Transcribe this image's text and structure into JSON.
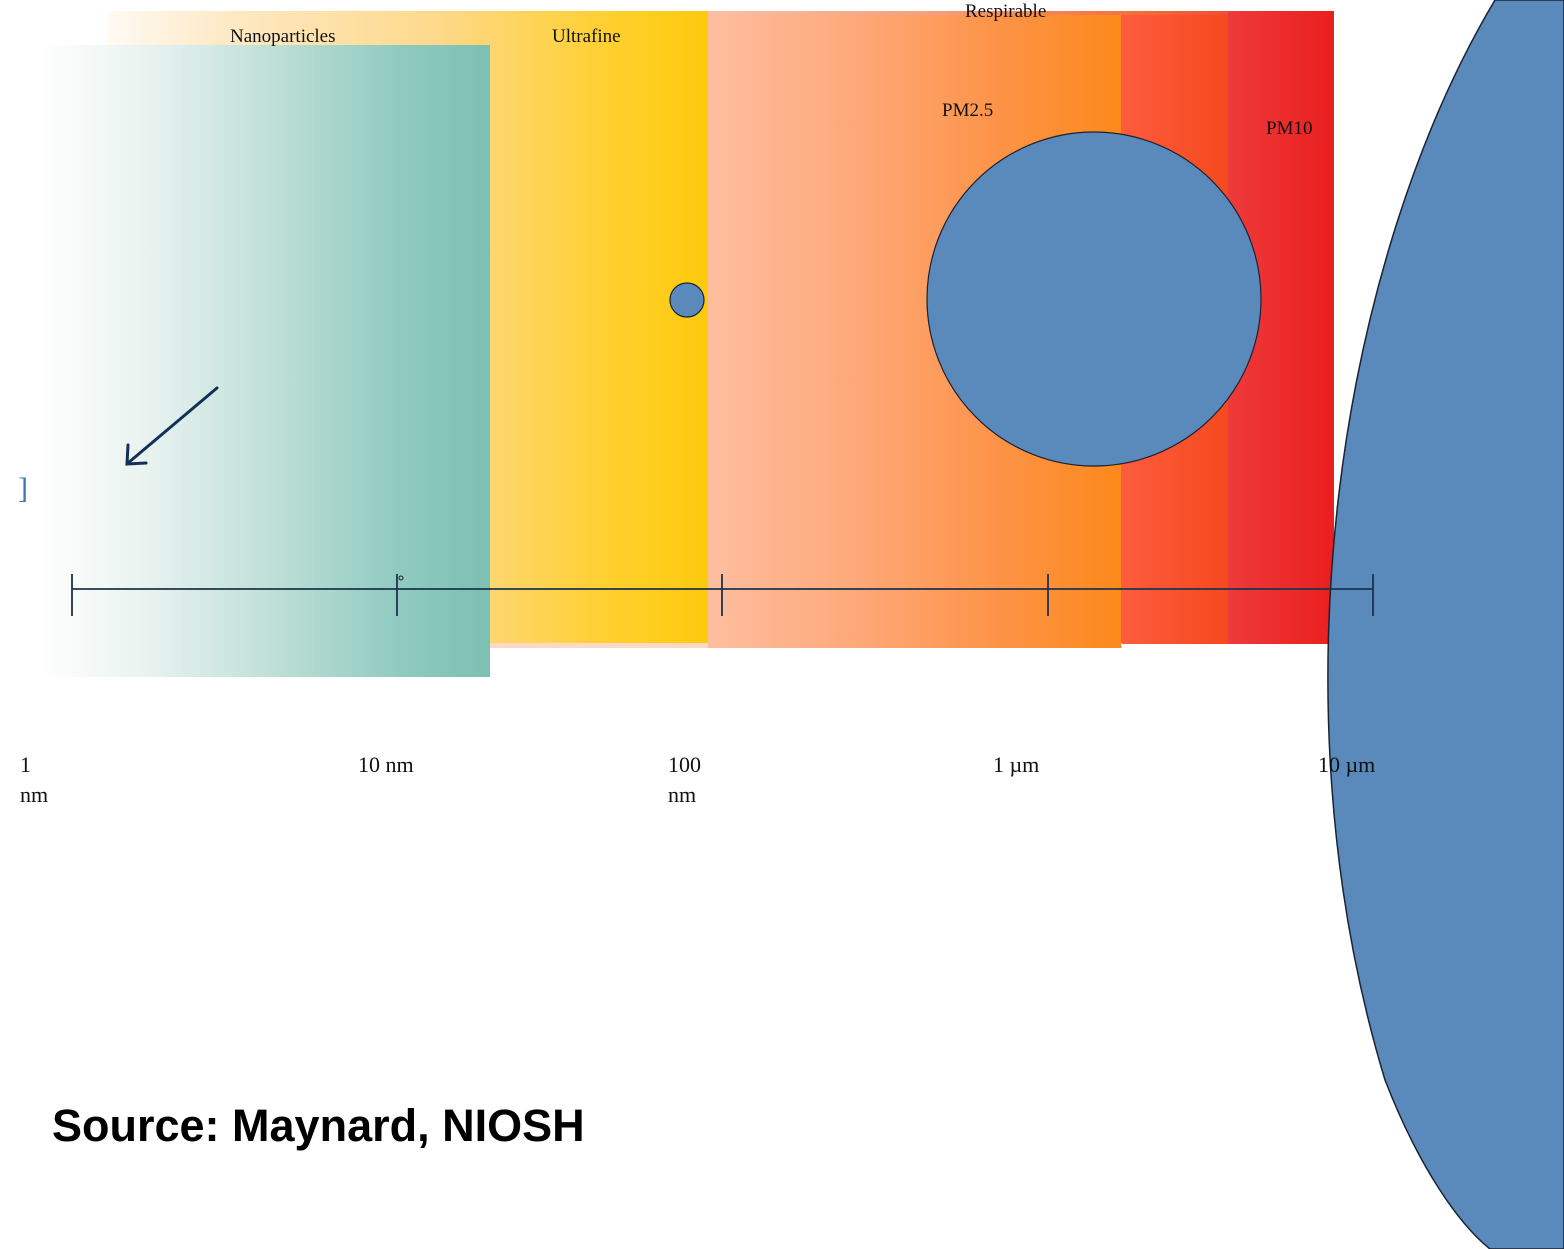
{
  "bands": {
    "nanoparticles": "Nanoparticles",
    "ultrafine": "Ultrafine",
    "respirable": "Respirable",
    "pm25": "PM2.5",
    "pm10": "PM10"
  },
  "scale": {
    "ticks": [
      {
        "line1": "1",
        "line2": "nm"
      },
      {
        "line1": "10 nm",
        "line2": ""
      },
      {
        "line1": "100",
        "line2": "nm"
      },
      {
        "line1": "1 µm",
        "line2": ""
      },
      {
        "line1": "10 µm",
        "line2": ""
      }
    ]
  },
  "source": "Source:  Maynard, NIOSH",
  "colors": {
    "particle_fill": "#5a8abb",
    "axis": "#1c3350",
    "arrow": "#14305a"
  }
}
